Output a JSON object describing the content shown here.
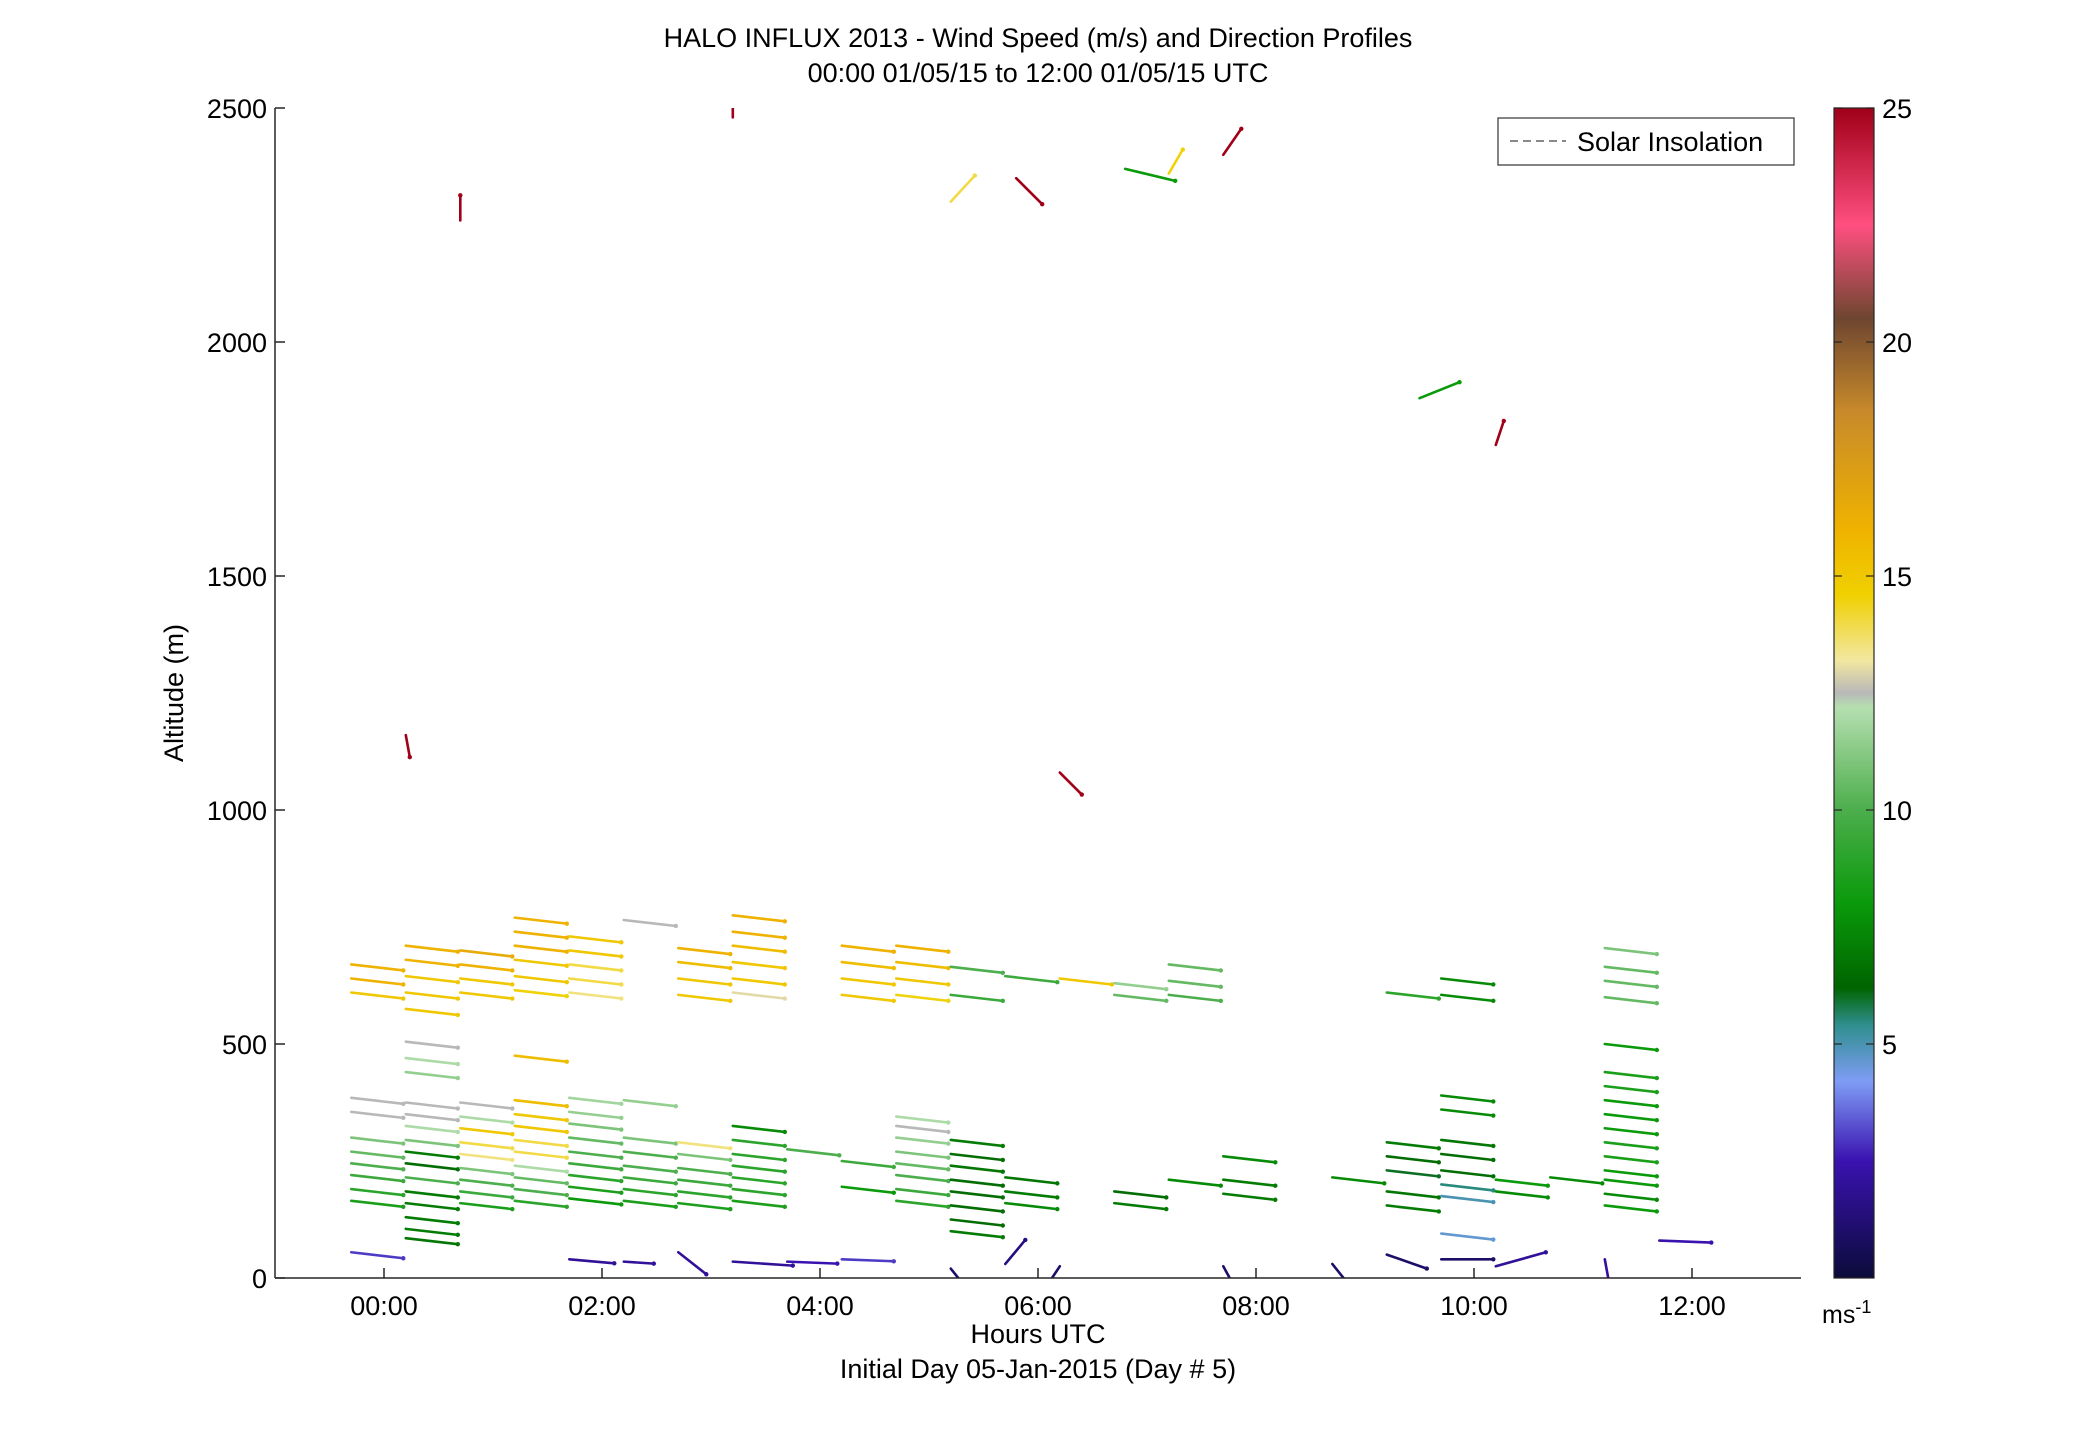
{
  "chart_data": {
    "type": "scatter",
    "title": "HALO INFLUX 2013 - Wind Speed (m/s) and Direction Profiles",
    "subtitle": "00:00 01/05/15 to 12:00 01/05/15  UTC",
    "xlabel": "Hours UTC",
    "xlabel2": "Initial Day 05-Jan-2015 (Day # 5)",
    "ylabel": "Altitude (m)",
    "xlim": [
      -1,
      13
    ],
    "ylim": [
      0,
      2500
    ],
    "x_ticks": [
      {
        "value": 0,
        "label": "00:00"
      },
      {
        "value": 2,
        "label": "02:00"
      },
      {
        "value": 4,
        "label": "04:00"
      },
      {
        "value": 6,
        "label": "06:00"
      },
      {
        "value": 8,
        "label": "08:00"
      },
      {
        "value": 10,
        "label": "10:00"
      },
      {
        "value": 12,
        "label": "12:00"
      }
    ],
    "y_ticks": [
      {
        "value": 0,
        "label": "0"
      },
      {
        "value": 500,
        "label": "500"
      },
      {
        "value": 1000,
        "label": "1000"
      },
      {
        "value": 1500,
        "label": "1500"
      },
      {
        "value": 2000,
        "label": "2000"
      },
      {
        "value": 2500,
        "label": "2500"
      }
    ],
    "grid": false,
    "legend": {
      "placement": "top-right",
      "entries": [
        {
          "label": "Solar Insolation",
          "style": "dashed",
          "color": "#888888"
        }
      ]
    },
    "colorbar": {
      "min": 0,
      "max": 25,
      "unit": "ms",
      "unit_exp": "-1",
      "ticks": [
        {
          "value": 5,
          "label": "5"
        },
        {
          "value": 10,
          "label": "10"
        },
        {
          "value": 15,
          "label": "15"
        },
        {
          "value": 20,
          "label": "20"
        },
        {
          "value": 25,
          "label": "25"
        }
      ],
      "stops": [
        {
          "v": 0,
          "c": "#0b0b3a"
        },
        {
          "v": 2.5,
          "c": "#3a12b0"
        },
        {
          "v": 4.2,
          "c": "#7f9cf5"
        },
        {
          "v": 5.4,
          "c": "#2f8f8f"
        },
        {
          "v": 6.2,
          "c": "#006400"
        },
        {
          "v": 8,
          "c": "#0a9a0a"
        },
        {
          "v": 10,
          "c": "#4cae4c"
        },
        {
          "v": 12.2,
          "c": "#b6dfb0"
        },
        {
          "v": 12.5,
          "c": "#b8b8b8"
        },
        {
          "v": 13.2,
          "c": "#f2e7a0"
        },
        {
          "v": 14.6,
          "c": "#f0d000"
        },
        {
          "v": 16,
          "c": "#efb200"
        },
        {
          "v": 18.5,
          "c": "#c88a2a"
        },
        {
          "v": 20.5,
          "c": "#6e4630"
        },
        {
          "v": 22.5,
          "c": "#ff4f80"
        },
        {
          "v": 25,
          "c": "#a00018"
        }
      ]
    },
    "arrow_columns": [
      {
        "t": -0.3,
        "points": [
          [
            670,
            16
          ],
          [
            640,
            16
          ],
          [
            610,
            15
          ],
          [
            385,
            12.5
          ],
          [
            355,
            12.5
          ],
          [
            300,
            11
          ],
          [
            270,
            10.5
          ],
          [
            245,
            10
          ],
          [
            220,
            9.5
          ],
          [
            190,
            9
          ],
          [
            165,
            8.5
          ],
          [
            55,
            3
          ]
        ]
      },
      {
        "t": 0.2,
        "points": [
          [
            710,
            16
          ],
          [
            680,
            16
          ],
          [
            645,
            15
          ],
          [
            610,
            15
          ],
          [
            575,
            15
          ],
          [
            505,
            12.5
          ],
          [
            470,
            12
          ],
          [
            440,
            11.5
          ],
          [
            375,
            12.5
          ],
          [
            350,
            12.5
          ],
          [
            325,
            12
          ],
          [
            295,
            11
          ],
          [
            270,
            7
          ],
          [
            245,
            6.5
          ],
          [
            215,
            10
          ],
          [
            185,
            7
          ],
          [
            160,
            7
          ],
          [
            130,
            7
          ],
          [
            105,
            7
          ],
          [
            85,
            6.8
          ]
        ]
      },
      {
        "t": 0.7,
        "points": [
          [
            700,
            16.5
          ],
          [
            670,
            16
          ],
          [
            640,
            15
          ],
          [
            610,
            15
          ],
          [
            375,
            12.5
          ],
          [
            345,
            12
          ],
          [
            320,
            15
          ],
          [
            290,
            14
          ],
          [
            265,
            13.5
          ],
          [
            235,
            11
          ],
          [
            210,
            10
          ],
          [
            185,
            9.5
          ],
          [
            160,
            8.5
          ]
        ]
      },
      {
        "t": 1.2,
        "points": [
          [
            770,
            16
          ],
          [
            740,
            16
          ],
          [
            710,
            16
          ],
          [
            680,
            15
          ],
          [
            645,
            15
          ],
          [
            615,
            14.5
          ],
          [
            475,
            15.5
          ],
          [
            380,
            15.5
          ],
          [
            350,
            15
          ],
          [
            325,
            15
          ],
          [
            295,
            14
          ],
          [
            270,
            14
          ],
          [
            240,
            12
          ],
          [
            215,
            10.5
          ],
          [
            190,
            10
          ],
          [
            165,
            9
          ]
        ]
      },
      {
        "t": 1.7,
        "points": [
          [
            730,
            15
          ],
          [
            700,
            15
          ],
          [
            670,
            14
          ],
          [
            640,
            14
          ],
          [
            610,
            13.5
          ],
          [
            385,
            11.8
          ],
          [
            355,
            11.5
          ],
          [
            330,
            11
          ],
          [
            300,
            10.5
          ],
          [
            270,
            10
          ],
          [
            245,
            9.5
          ],
          [
            220,
            9
          ],
          [
            195,
            8.5
          ],
          [
            170,
            8
          ]
        ]
      },
      {
        "t": 2.2,
        "points": [
          [
            765,
            12.5
          ],
          [
            380,
            11.5
          ],
          [
            300,
            11
          ],
          [
            270,
            10
          ],
          [
            240,
            10
          ],
          [
            215,
            9.5
          ],
          [
            190,
            9
          ],
          [
            165,
            8.5
          ]
        ]
      },
      {
        "t": 2.7,
        "points": [
          [
            705,
            16
          ],
          [
            675,
            15.5
          ],
          [
            640,
            15
          ],
          [
            605,
            15
          ],
          [
            290,
            13.5
          ],
          [
            265,
            11
          ],
          [
            235,
            10
          ],
          [
            210,
            9.5
          ],
          [
            185,
            9
          ],
          [
            160,
            8.5
          ]
        ]
      },
      {
        "t": 3.2,
        "points": [
          [
            775,
            16
          ],
          [
            740,
            16
          ],
          [
            710,
            15.5
          ],
          [
            675,
            15
          ],
          [
            640,
            15
          ],
          [
            610,
            13
          ],
          [
            325,
            7.5
          ],
          [
            295,
            9
          ],
          [
            265,
            9
          ],
          [
            240,
            9
          ],
          [
            215,
            9
          ],
          [
            190,
            9
          ],
          [
            165,
            8.5
          ]
        ]
      },
      {
        "t": 3.7,
        "points": [
          [
            275,
            10
          ]
        ]
      },
      {
        "t": 4.2,
        "points": [
          [
            710,
            16
          ],
          [
            675,
            15.5
          ],
          [
            640,
            15
          ],
          [
            605,
            15
          ],
          [
            250,
            9.5
          ],
          [
            195,
            8
          ]
        ]
      },
      {
        "t": 4.7,
        "points": [
          [
            710,
            16
          ],
          [
            675,
            15.5
          ],
          [
            640,
            15
          ],
          [
            605,
            14.5
          ],
          [
            345,
            12
          ],
          [
            325,
            12.5
          ],
          [
            300,
            11.5
          ],
          [
            270,
            11
          ],
          [
            245,
            10.5
          ],
          [
            220,
            10
          ],
          [
            190,
            9.5
          ],
          [
            165,
            9
          ]
        ]
      },
      {
        "t": 5.2,
        "points": [
          [
            665,
            10
          ],
          [
            605,
            9.5
          ],
          [
            295,
            7
          ],
          [
            265,
            6.5
          ],
          [
            240,
            6.8
          ],
          [
            210,
            6.5
          ],
          [
            185,
            6.5
          ],
          [
            155,
            6.5
          ],
          [
            125,
            6.5
          ],
          [
            100,
            7
          ]
        ]
      },
      {
        "t": 5.7,
        "points": [
          [
            645,
            9.5
          ],
          [
            215,
            6.8
          ],
          [
            185,
            7
          ],
          [
            160,
            7.5
          ]
        ]
      },
      {
        "t": 6.2,
        "points": [
          [
            640,
            15
          ]
        ]
      },
      {
        "t": 6.7,
        "points": [
          [
            630,
            11.5
          ],
          [
            605,
            10.5
          ],
          [
            185,
            6.5
          ],
          [
            160,
            7
          ]
        ]
      },
      {
        "t": 7.2,
        "points": [
          [
            670,
            10.5
          ],
          [
            635,
            10.5
          ],
          [
            605,
            10
          ],
          [
            210,
            7.5
          ]
        ]
      },
      {
        "t": 7.7,
        "points": [
          [
            260,
            7.5
          ],
          [
            210,
            7
          ],
          [
            180,
            7
          ]
        ]
      },
      {
        "t": 8.7,
        "points": [
          [
            215,
            7.5
          ]
        ]
      },
      {
        "t": 9.2,
        "points": [
          [
            610,
            9
          ],
          [
            290,
            7
          ],
          [
            260,
            6.5
          ],
          [
            230,
            6
          ],
          [
            185,
            6.8
          ],
          [
            155,
            7
          ]
        ]
      },
      {
        "t": 9.7,
        "points": [
          [
            640,
            7.5
          ],
          [
            605,
            7.5
          ],
          [
            390,
            7.5
          ],
          [
            360,
            7.5
          ],
          [
            295,
            6.8
          ],
          [
            265,
            6.5
          ],
          [
            230,
            6.5
          ],
          [
            200,
            5.5
          ],
          [
            175,
            5
          ],
          [
            95,
            4.6
          ]
        ]
      },
      {
        "t": 10.2,
        "points": [
          [
            210,
            8
          ],
          [
            185,
            7.5
          ]
        ]
      },
      {
        "t": 10.7,
        "points": [
          [
            215,
            7.5
          ]
        ]
      },
      {
        "t": 11.2,
        "points": [
          [
            705,
            11
          ],
          [
            665,
            10.5
          ],
          [
            635,
            10.5
          ],
          [
            600,
            10.5
          ],
          [
            500,
            8
          ],
          [
            440,
            8.5
          ],
          [
            410,
            8.5
          ],
          [
            380,
            8
          ],
          [
            350,
            8
          ],
          [
            320,
            8
          ],
          [
            290,
            8.5
          ],
          [
            260,
            8.5
          ],
          [
            230,
            8
          ],
          [
            210,
            8
          ],
          [
            180,
            7.5
          ],
          [
            155,
            8
          ]
        ]
      }
    ],
    "sparse_barbs": [
      {
        "t": 0.2,
        "alt": 1160,
        "speed": 25
      },
      {
        "t": 0.7,
        "alt": 2260,
        "speed": 25
      },
      {
        "t": 3.2,
        "alt": 2480,
        "speed": 25
      },
      {
        "t": 5.2,
        "alt": 2300,
        "speed": 14
      },
      {
        "t": 5.8,
        "alt": 2350,
        "speed": 25
      },
      {
        "t": 6.2,
        "alt": 1080,
        "speed": 25
      },
      {
        "t": 6.8,
        "alt": 2370,
        "speed": 8
      },
      {
        "t": 7.2,
        "alt": 2360,
        "speed": 14.5
      },
      {
        "t": 7.7,
        "alt": 2400,
        "speed": 25
      },
      {
        "t": 9.5,
        "alt": 1880,
        "speed": 8
      },
      {
        "t": 10.2,
        "alt": 1780,
        "speed": 25
      }
    ],
    "low_barbs": [
      {
        "t": 1.7,
        "alt": 40,
        "speed": 2
      },
      {
        "t": 2.2,
        "alt": 35,
        "speed": 2
      },
      {
        "t": 2.7,
        "alt": 55,
        "speed": 2
      },
      {
        "t": 3.2,
        "alt": 35,
        "speed": 2
      },
      {
        "t": 3.7,
        "alt": 35,
        "speed": 2.5
      },
      {
        "t": 4.2,
        "alt": 40,
        "speed": 3
      },
      {
        "t": 5.2,
        "alt": 20,
        "speed": 1
      },
      {
        "t": 5.7,
        "alt": 30,
        "speed": 1.5
      },
      {
        "t": 6.2,
        "alt": 25,
        "speed": 1
      },
      {
        "t": 7.7,
        "alt": 25,
        "speed": 1
      },
      {
        "t": 8.7,
        "alt": 30,
        "speed": 1
      },
      {
        "t": 9.2,
        "alt": 50,
        "speed": 1
      },
      {
        "t": 9.7,
        "alt": 40,
        "speed": 1
      },
      {
        "t": 10.2,
        "alt": 25,
        "speed": 2
      },
      {
        "t": 11.2,
        "alt": 40,
        "speed": 2
      },
      {
        "t": 11.7,
        "alt": 80,
        "speed": 2.5
      }
    ]
  }
}
